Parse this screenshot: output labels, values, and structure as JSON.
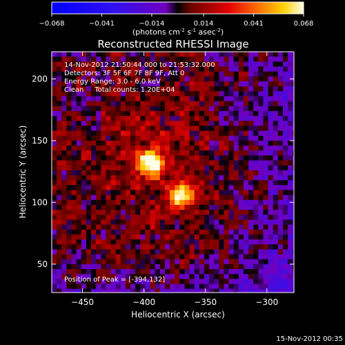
{
  "chart_data": {
    "type": "heatmap",
    "title": "Reconstructed RHESSI Image",
    "xlabel": "Heliocentric X (arcsec)",
    "ylabel": "Heliocentric Y (arcsec)",
    "xlim": [
      -475,
      -278
    ],
    "ylim": [
      27,
      222
    ],
    "x_ticks": [
      -450,
      -400,
      -350,
      -300
    ],
    "y_ticks": [
      50,
      100,
      150,
      200
    ],
    "grid": false,
    "colorbar": {
      "ticks": [
        -0.068,
        -0.041,
        -0.014,
        0.014,
        0.041,
        0.068
      ],
      "range": [
        -0.068,
        0.068
      ],
      "unit_prefix": "(photons cm",
      "unit_sup1": "-2",
      "unit_mid": " s",
      "unit_sup2": "-1",
      "unit_mid2": " asec",
      "unit_sup3": "-2",
      "unit_suffix": ")"
    },
    "annotations": [
      "14-Nov-2012 21:50:44.000 to 21:53:32.000",
      "Detectors: 3F 5F 6F 7F 8F 9F, Att 0",
      "Energy Range: 3.0 - 6.0 keV",
      "Clean     Total counts: 1.20E+04"
    ],
    "peak_label": "Position of Peak = [-394,132]",
    "sources": [
      {
        "x": -394,
        "y": 132,
        "peak": 0.068,
        "sigma": 7
      },
      {
        "x": -370,
        "y": 106,
        "peak": 0.058,
        "sigma": 7
      }
    ],
    "timestamp": "15-Nov-2012 00:35"
  }
}
